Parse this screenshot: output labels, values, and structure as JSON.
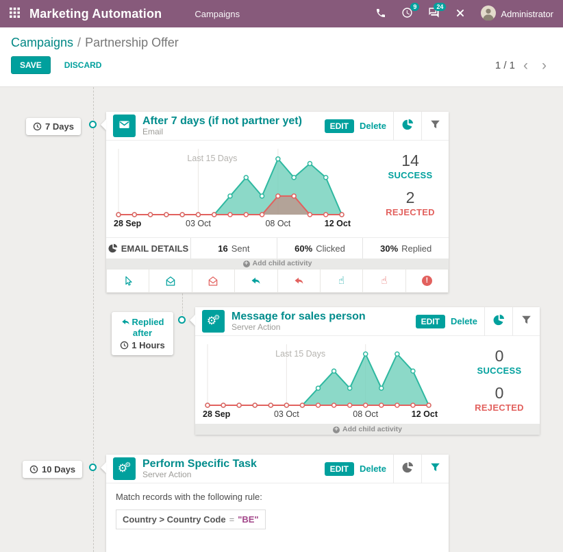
{
  "topbar": {
    "app_title": "Marketing Automation",
    "menu_campaigns": "Campaigns",
    "activities_count": "9",
    "messages_count": "24",
    "user_name": "Administrator"
  },
  "breadcrumb": {
    "parent": "Campaigns",
    "separator": "/",
    "current": "Partnership Offer"
  },
  "toolbar": {
    "save": "SAVE",
    "discard": "DISCARD"
  },
  "pager": {
    "value": "1 / 1",
    "prev": "‹",
    "next": "›"
  },
  "colors": {
    "topbar": "#875A7B",
    "accent": "#00A09D",
    "danger": "#e2615e"
  },
  "activities": [
    {
      "trigger_delay": "7 Days",
      "title": "After 7 days (if not partner yet)",
      "type": "Email",
      "edit": "EDIT",
      "delete": "Delete",
      "stats": {
        "success": "14",
        "success_label": "SUCCESS",
        "rejected": "2",
        "rejected_label": "REJECTED"
      },
      "details": {
        "title": "EMAIL DETAILS",
        "cells": [
          {
            "value": "16",
            "label": "Sent"
          },
          {
            "value": "60%",
            "label": "Clicked"
          },
          {
            "value": "30%",
            "label": "Replied"
          }
        ]
      },
      "add_child": "Add child activity",
      "child_triggers": [
        {
          "name": "open-cursor",
          "icon": "cursor",
          "color": "#00A09D"
        },
        {
          "name": "mail-opened",
          "icon": "envelope-open",
          "color": "#00A09D"
        },
        {
          "name": "mail-not-opened",
          "icon": "envelope-open",
          "color": "#e2615e"
        },
        {
          "name": "mail-replied",
          "icon": "reply",
          "color": "#00A09D"
        },
        {
          "name": "mail-not-replied",
          "icon": "reply",
          "color": "#e2615e"
        },
        {
          "name": "mail-clicked",
          "icon": "hand-pointer",
          "color": "#00A09D"
        },
        {
          "name": "mail-not-clicked",
          "icon": "hand-pointer",
          "color": "#e2615e"
        },
        {
          "name": "mail-bounced",
          "icon": "exclamation-circle",
          "color": "#e2615e"
        }
      ],
      "chart_data": {
        "type": "area",
        "overlay_label": "Last 15 Days",
        "x": [
          "28 Sep",
          "29 Sep",
          "30 Sep",
          "01 Oct",
          "02 Oct",
          "03 Oct",
          "04 Oct",
          "05 Oct",
          "06 Oct",
          "07 Oct",
          "08 Oct",
          "09 Oct",
          "10 Oct",
          "11 Oct",
          "12 Oct"
        ],
        "ticks": [
          {
            "index": 0,
            "label": "28 Sep",
            "bold": true
          },
          {
            "index": 5,
            "label": "03 Oct",
            "bold": false
          },
          {
            "index": 10,
            "label": "08 Oct",
            "bold": false
          },
          {
            "index": 14,
            "label": "12 Oct",
            "bold": true
          }
        ],
        "grid_at": [
          0,
          5,
          10
        ],
        "ylim": [
          0,
          6.5
        ],
        "series": [
          {
            "name": "Success",
            "color": "#2eb8a0",
            "fill": "rgba(111,207,186,0.8)",
            "values": [
              0,
              0,
              0,
              0,
              0,
              0,
              0,
              2,
              4,
              2,
              6,
              4,
              5.5,
              4,
              0
            ]
          },
          {
            "name": "Rejected",
            "color": "#e2615e",
            "fill": "rgba(226,97,94,0.45)",
            "values": [
              0,
              0,
              0,
              0,
              0,
              0,
              0,
              0,
              0,
              0,
              2,
              2,
              0,
              0,
              0
            ]
          }
        ]
      }
    },
    {
      "trigger_condition": "Replied after",
      "trigger_delay": "1 Hours",
      "title": "Message for sales person",
      "type": "Server Action",
      "edit": "EDIT",
      "delete": "Delete",
      "stats": {
        "success": "0",
        "success_label": "SUCCESS",
        "rejected": "0",
        "rejected_label": "REJECTED"
      },
      "add_child": "Add child activity",
      "chart_data": {
        "type": "area",
        "overlay_label": "Last 15 Days",
        "x": [
          "28 Sep",
          "29 Sep",
          "30 Sep",
          "01 Oct",
          "02 Oct",
          "03 Oct",
          "04 Oct",
          "05 Oct",
          "06 Oct",
          "07 Oct",
          "08 Oct",
          "09 Oct",
          "10 Oct",
          "11 Oct",
          "12 Oct"
        ],
        "ticks": [
          {
            "index": 0,
            "label": "28 Sep",
            "bold": true
          },
          {
            "index": 5,
            "label": "03 Oct",
            "bold": false
          },
          {
            "index": 10,
            "label": "08 Oct",
            "bold": false
          },
          {
            "index": 14,
            "label": "12 Oct",
            "bold": true
          }
        ],
        "grid_at": [
          0,
          5,
          10
        ],
        "ylim": [
          0,
          6.5
        ],
        "series": [
          {
            "name": "Success",
            "color": "#2eb8a0",
            "fill": "rgba(111,207,186,0.8)",
            "values": [
              0,
              0,
              0,
              0,
              0,
              0,
              0,
              2,
              4,
              2,
              6,
              2,
              6,
              4,
              0
            ]
          },
          {
            "name": "Rejected",
            "color": "#e2615e",
            "fill": "rgba(226,97,94,0.45)",
            "values": [
              0,
              0,
              0,
              0,
              0,
              0,
              0,
              0,
              0,
              0,
              0,
              0,
              0,
              0,
              0
            ]
          }
        ]
      }
    },
    {
      "trigger_delay": "10 Days",
      "title": "Perform Specific Task",
      "type": "Server Action",
      "edit": "EDIT",
      "delete": "Delete",
      "rule": {
        "intro": "Match records with the following rule:",
        "field": "Country > Country Code",
        "operator": "=",
        "value": "\"BE\""
      }
    }
  ]
}
